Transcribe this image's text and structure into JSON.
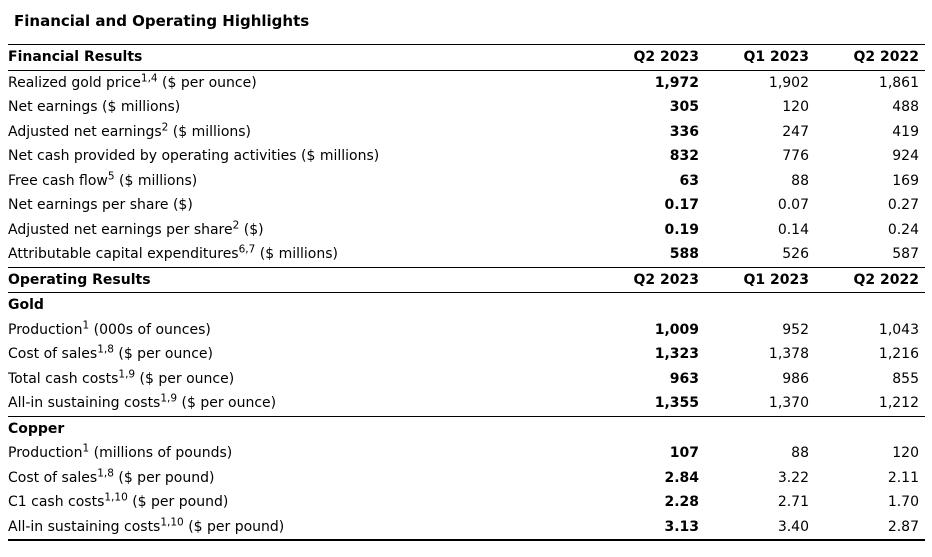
{
  "title": "Financial and Operating Highlights",
  "columns": [
    "Q2 2023",
    "Q1 2023",
    "Q2 2022"
  ],
  "sections": [
    {
      "header": "Financial Results",
      "groups": [
        {
          "rows": [
            {
              "label": "Realized gold price",
              "sup": "1,4",
              "unit": " ($ per ounce)",
              "values": [
                "1,972",
                "1,902",
                "1,861"
              ]
            },
            {
              "label": "Net earnings",
              "unit": " ($ millions)",
              "values": [
                "305",
                "120",
                "488"
              ]
            },
            {
              "label": "Adjusted net earnings",
              "sup": "2",
              "unit": " ($ millions)",
              "values": [
                "336",
                "247",
                "419"
              ]
            },
            {
              "label": "Net cash provided by operating activities",
              "unit": " ($ millions)",
              "values": [
                "832",
                "776",
                "924"
              ]
            },
            {
              "label": "Free cash flow",
              "sup": "5",
              "unit": " ($ millions)",
              "values": [
                "63",
                "88",
                "169"
              ]
            },
            {
              "label": "Net earnings per share",
              "unit": " ($)",
              "values": [
                "0.17",
                "0.07",
                "0.27"
              ]
            },
            {
              "label": "Adjusted net earnings per share",
              "sup": "2",
              "unit": " ($)",
              "values": [
                "0.19",
                "0.14",
                "0.24"
              ]
            },
            {
              "label": "Attributable capital expenditures",
              "sup": "6,7",
              "unit": " ($ millions)",
              "values": [
                "588",
                "526",
                "587"
              ]
            }
          ]
        }
      ]
    },
    {
      "header": "Operating Results",
      "groups": [
        {
          "name": "Gold",
          "rows": [
            {
              "label": "Production",
              "sup": "1",
              "unit": " (000s of ounces)",
              "values": [
                "1,009",
                "952",
                "1,043"
              ]
            },
            {
              "label": "Cost of sales",
              "sup": "1,8",
              "unit": " ($ per ounce)",
              "values": [
                "1,323",
                "1,378",
                "1,216"
              ]
            },
            {
              "label": "Total cash costs",
              "sup": "1,9",
              "unit": " ($ per ounce)",
              "values": [
                "963",
                "986",
                "855"
              ]
            },
            {
              "label": "All-in sustaining costs",
              "sup": "1,9",
              "unit": " ($ per ounce)",
              "values": [
                "1,355",
                "1,370",
                "1,212"
              ]
            }
          ]
        },
        {
          "name": "Copper",
          "rows": [
            {
              "label": "Production",
              "sup": "1",
              "unit": " (millions of pounds)",
              "values": [
                "107",
                "88",
                "120"
              ]
            },
            {
              "label": "Cost of sales",
              "sup": "1,8",
              "unit": " ($ per pound)",
              "values": [
                "2.84",
                "3.22",
                "2.11"
              ]
            },
            {
              "label": "C1 cash costs",
              "sup": "1,10",
              "unit": " ($ per pound)",
              "values": [
                "2.28",
                "2.71",
                "1.70"
              ]
            },
            {
              "label": "All-in sustaining costs",
              "sup": "1,10",
              "unit": " ($ per pound)",
              "values": [
                "3.13",
                "3.40",
                "2.87"
              ]
            }
          ]
        }
      ]
    }
  ]
}
